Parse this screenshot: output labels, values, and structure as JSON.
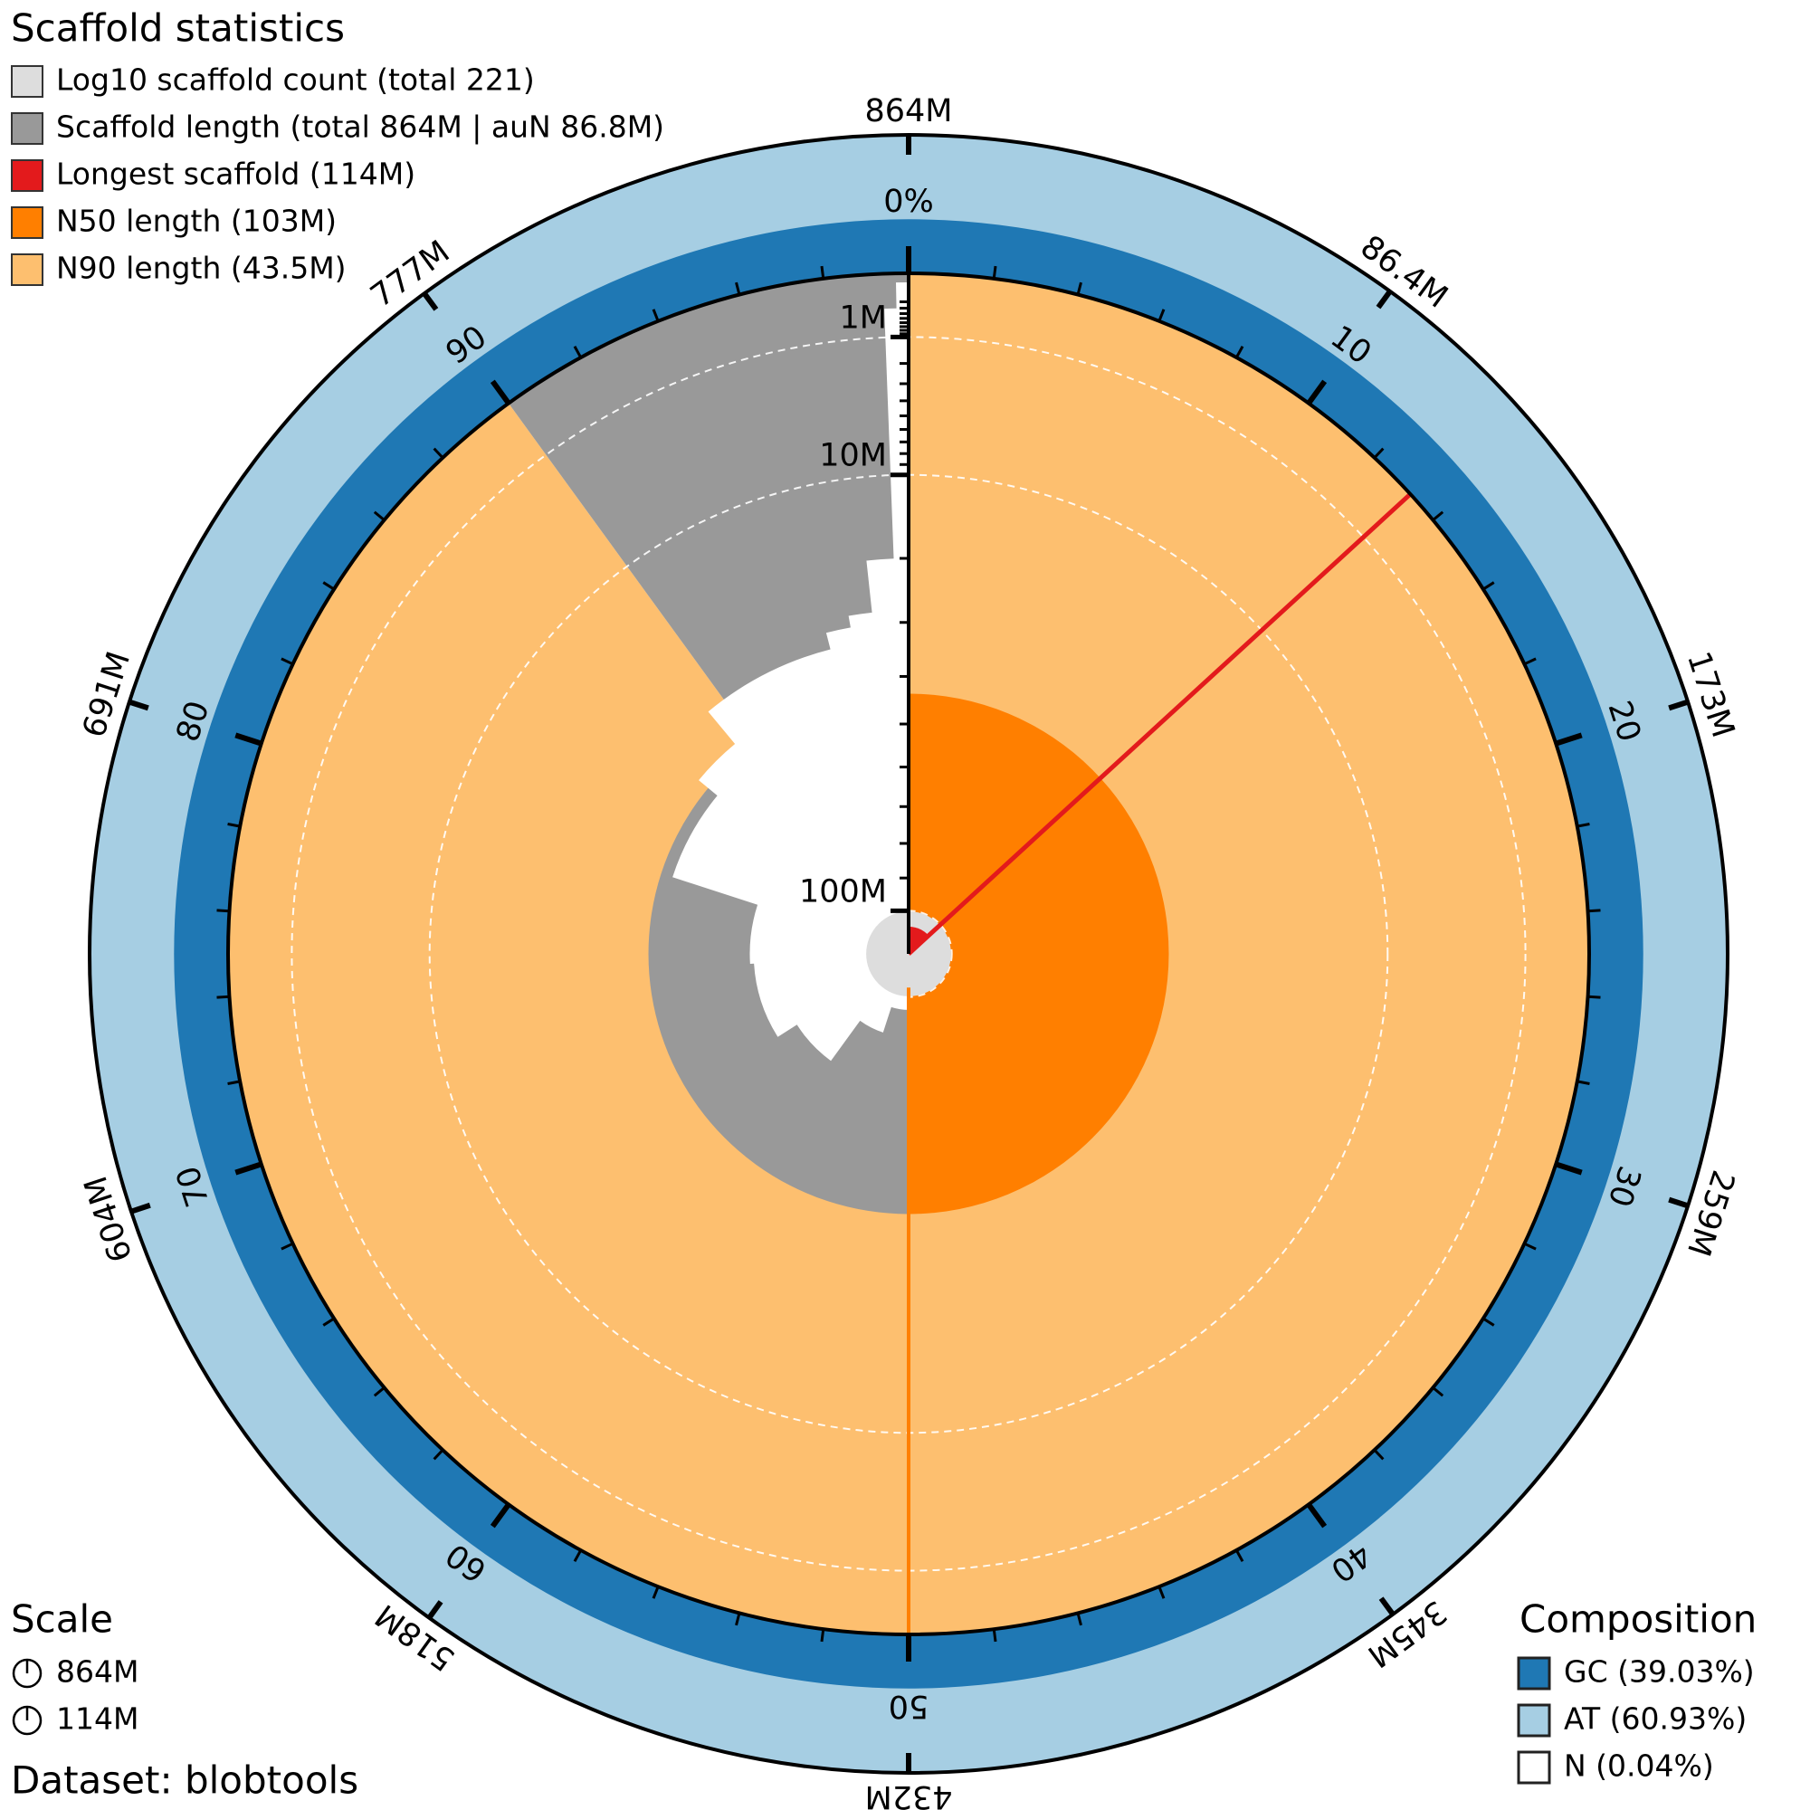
{
  "chart_data": {
    "type": "snail",
    "title": "Scaffold statistics",
    "legend": [
      {
        "name": "Log10 scaffold count (total 221)",
        "color": "#dddddd"
      },
      {
        "name": "Scaffold length (total 864M | auN 86.8M)",
        "color": "#999999"
      },
      {
        "name": "Longest scaffold (114M)",
        "color": "#e31a1c"
      },
      {
        "name": "N50 length (103M)",
        "color": "#ff7f00"
      },
      {
        "name": "N90 length (43.5M)",
        "color": "#fdbf6f"
      }
    ],
    "scaffold_count": 221,
    "total_length": 864,
    "longest": 114,
    "n50": {
      "percent": 50,
      "length": 103
    },
    "n90": {
      "percent": 90,
      "length": 43.5
    },
    "profile": {
      "percent": [
        0,
        13.2,
        26,
        38,
        50,
        55,
        60,
        66,
        74,
        80,
        86,
        89,
        96,
        97.2,
        98.3,
        99.4,
        99.7
      ],
      "length": [
        114,
        110,
        106,
        103,
        96,
        88,
        74,
        68,
        67,
        46,
        41,
        33,
        30,
        28,
        20,
        0.3,
        0.02
      ]
    },
    "radial_ticks": [
      {
        "value": 100,
        "label": "100M"
      },
      {
        "value": 10,
        "label": "10M"
      },
      {
        "value": 1,
        "label": "1M"
      }
    ],
    "radial_minor_ticks": [
      90,
      80,
      70,
      60,
      50,
      40,
      30,
      20,
      9,
      8,
      7,
      6,
      5,
      4,
      3,
      2,
      0.9,
      0.8,
      0.7,
      0.6,
      0.5,
      0.4,
      0.3,
      0.2
    ],
    "percent_ticks": [
      {
        "value": 0,
        "label": "0%"
      },
      10,
      20,
      30,
      40,
      50,
      60,
      70,
      80,
      90
    ],
    "percent_minor_ticks": [
      2,
      4,
      6,
      8,
      12,
      14,
      16,
      18,
      22,
      24,
      26,
      28,
      32,
      34,
      36,
      38,
      42,
      44,
      46,
      48,
      52,
      54,
      56,
      58,
      62,
      64,
      66,
      68,
      72,
      74,
      76,
      78,
      82,
      84,
      86,
      88,
      92,
      94,
      96,
      98
    ],
    "length_ticks": [
      {
        "value": 864,
        "label": "864M"
      },
      {
        "value": 86.4,
        "label": "86.4M"
      },
      {
        "value": 173,
        "label": "173M"
      },
      {
        "value": 259,
        "label": "259M"
      },
      {
        "value": 345,
        "label": "345M"
      },
      {
        "value": 432,
        "label": "432M"
      },
      {
        "value": 518,
        "label": "518M"
      },
      {
        "value": 604,
        "label": "604M"
      },
      {
        "value": 691,
        "label": "691M"
      },
      {
        "value": 777,
        "label": "777M"
      }
    ],
    "scale": {
      "title": "Scale",
      "items": [
        {
          "label": "864M",
          "value": 864
        },
        {
          "label": "114M",
          "value": 114
        }
      ]
    },
    "composition": {
      "title": "Composition",
      "items": [
        {
          "label": "GC (39.03%)",
          "value": 39.03,
          "color": "#1f78b4"
        },
        {
          "label": "AT (60.93%)",
          "value": 60.93,
          "color": "#a6cee3"
        },
        {
          "label": "N (0.04%)",
          "value": 0.04,
          "color": "#ffffff"
        }
      ]
    },
    "dataset": "Dataset: blobtools"
  }
}
